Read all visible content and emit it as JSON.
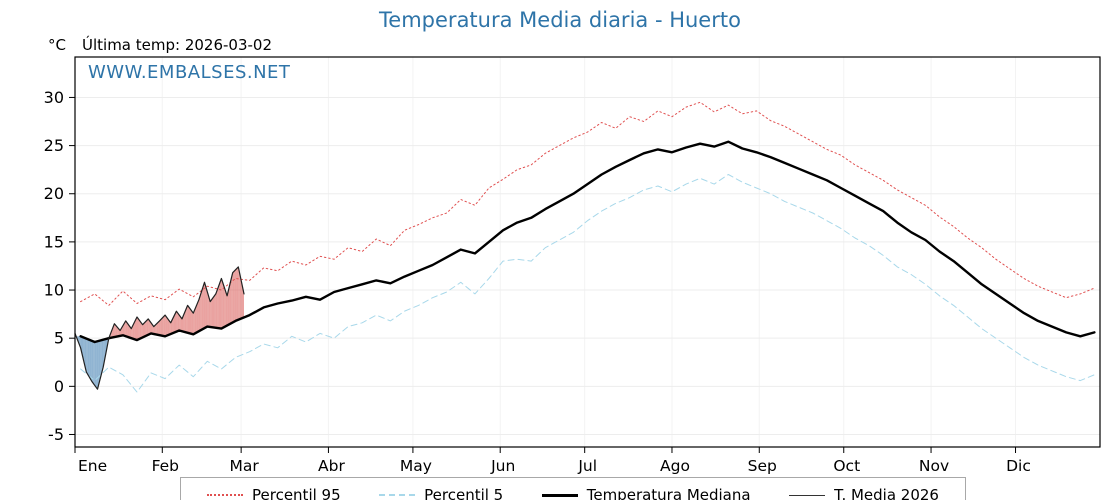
{
  "header": {
    "title": "Temperatura Media diaria - Huerto",
    "y_unit": "°C",
    "last_temp_label": "Última temp: 2026-03-02",
    "watermark": "WWW.EMBALSES.NET"
  },
  "legend": [
    {
      "label": "Percentil 95",
      "style": "dotted",
      "color": "#e05050"
    },
    {
      "label": "Percentil 5",
      "style": "dashed",
      "color": "#a8d8ea"
    },
    {
      "label": "Temperatura Mediana",
      "style": "solid-thick",
      "color": "#000000"
    },
    {
      "label": "T. Media 2026",
      "style": "solid-thin",
      "color": "#333333"
    }
  ],
  "chart_data": {
    "type": "line",
    "title": "Temperatura Media diaria - Huerto",
    "ylabel": "°C",
    "x_unit": "day_of_year",
    "xlim": [
      1,
      365
    ],
    "ylim": [
      -6.3,
      34.2
    ],
    "yticks": [
      -5,
      0,
      5,
      10,
      15,
      20,
      25,
      30
    ],
    "xticks": {
      "days": [
        1,
        32,
        60,
        91,
        121,
        152,
        182,
        213,
        244,
        274,
        305,
        335
      ],
      "labels": [
        "Ene",
        "Feb",
        "Mar",
        "Abr",
        "May",
        "Jun",
        "Jul",
        "Ago",
        "Sep",
        "Oct",
        "Nov",
        "Dic"
      ]
    },
    "grid": true,
    "legend_position": "bottom",
    "fills": {
      "between": [
        "T. Media 2026",
        "Temperatura Mediana"
      ],
      "above_color": "rgba(214,69,65,0.50)",
      "below_color": "rgba(70,130,180,0.60)"
    },
    "series": [
      {
        "name": "Percentil 95",
        "color": "#e05050",
        "dash": "dotted",
        "width": 1,
        "x_start": 3,
        "x_step": 5,
        "y": [
          8.8,
          9.6,
          8.4,
          9.9,
          8.6,
          9.4,
          9.0,
          10.1,
          9.3,
          10.4,
          10.0,
          11.2,
          11.0,
          12.3,
          12.0,
          13.0,
          12.6,
          13.5,
          13.2,
          14.4,
          14.0,
          15.3,
          14.6,
          16.2,
          16.8,
          17.5,
          18.0,
          19.4,
          18.8,
          20.6,
          21.5,
          22.5,
          23.0,
          24.2,
          25.0,
          25.8,
          26.4,
          27.4,
          26.8,
          28.0,
          27.5,
          28.6,
          28.0,
          29.0,
          29.5,
          28.5,
          29.2,
          28.3,
          28.6,
          27.6,
          27.0,
          26.2,
          25.4,
          24.6,
          24.0,
          23.0,
          22.2,
          21.4,
          20.4,
          19.6,
          18.8,
          17.6,
          16.6,
          15.4,
          14.4,
          13.2,
          12.2,
          11.2,
          10.4,
          9.8,
          9.2,
          9.6,
          10.2
        ]
      },
      {
        "name": "Percentil 5",
        "color": "#a8d8ea",
        "dash": "dashed",
        "width": 1,
        "x_start": 3,
        "x_step": 5,
        "y": [
          1.8,
          0.6,
          2.0,
          1.2,
          -0.6,
          1.4,
          0.8,
          2.2,
          1.0,
          2.6,
          1.8,
          3.0,
          3.6,
          4.4,
          4.0,
          5.2,
          4.6,
          5.5,
          5.0,
          6.2,
          6.6,
          7.4,
          6.8,
          7.8,
          8.4,
          9.2,
          9.8,
          10.8,
          9.6,
          11.2,
          13.0,
          13.2,
          13.0,
          14.4,
          15.2,
          16.0,
          17.2,
          18.2,
          19.0,
          19.6,
          20.4,
          20.8,
          20.2,
          21.0,
          21.6,
          21.0,
          22.0,
          21.2,
          20.6,
          20.0,
          19.2,
          18.6,
          18.0,
          17.2,
          16.4,
          15.4,
          14.6,
          13.6,
          12.4,
          11.6,
          10.6,
          9.4,
          8.4,
          7.2,
          6.0,
          5.0,
          4.0,
          3.0,
          2.2,
          1.6,
          1.0,
          0.6,
          1.2
        ]
      },
      {
        "name": "Temperatura Mediana",
        "color": "#000000",
        "dash": "solid",
        "width": 2.4,
        "x_start": 3,
        "x_step": 5,
        "y": [
          5.2,
          4.6,
          5.0,
          5.3,
          4.8,
          5.5,
          5.2,
          5.8,
          5.4,
          6.2,
          6.0,
          6.8,
          7.4,
          8.2,
          8.6,
          8.9,
          9.3,
          9.0,
          9.8,
          10.2,
          10.6,
          11.0,
          10.7,
          11.4,
          12.0,
          12.6,
          13.4,
          14.2,
          13.8,
          15.0,
          16.2,
          17.0,
          17.5,
          18.4,
          19.2,
          20.0,
          21.0,
          22.0,
          22.8,
          23.5,
          24.2,
          24.6,
          24.3,
          24.8,
          25.2,
          24.9,
          25.4,
          24.7,
          24.3,
          23.8,
          23.2,
          22.6,
          22.0,
          21.4,
          20.6,
          19.8,
          19.0,
          18.2,
          17.0,
          16.0,
          15.2,
          14.0,
          13.0,
          11.8,
          10.6,
          9.6,
          8.6,
          7.6,
          6.8,
          6.2,
          5.6,
          5.2,
          5.6
        ]
      },
      {
        "name": "T. Media 2026",
        "color": "#222222",
        "dash": "solid",
        "width": 1.2,
        "x_start": 1,
        "x_step": 2,
        "y": [
          5.5,
          4.0,
          1.5,
          0.5,
          -0.3,
          2.0,
          5.0,
          6.5,
          5.8,
          6.8,
          6.0,
          7.2,
          6.4,
          7.0,
          6.2,
          6.8,
          7.4,
          6.6,
          7.8,
          7.0,
          8.4,
          7.6,
          9.0,
          10.8,
          8.8,
          9.6,
          11.2,
          9.4,
          11.8,
          12.4,
          9.6
        ]
      }
    ]
  }
}
